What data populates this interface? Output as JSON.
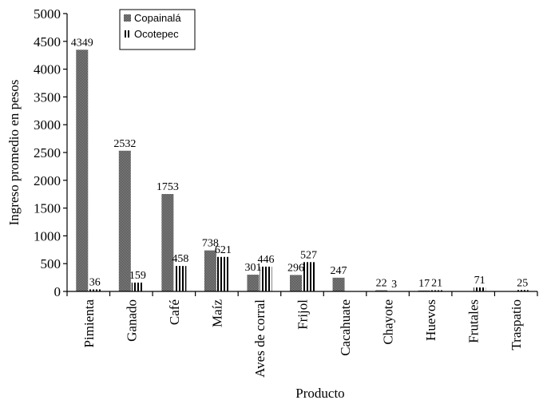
{
  "chart_data": {
    "type": "bar",
    "title": "",
    "xlabel": "Producto",
    "ylabel": "Ingreso promedio en pesos",
    "ylim": [
      0,
      5000
    ],
    "yticks": [
      0,
      500,
      1000,
      1500,
      2000,
      2500,
      3000,
      3500,
      4000,
      4500,
      5000
    ],
    "grid": false,
    "legend_position": "top-left",
    "categories": [
      "Pimienta",
      "Ganado",
      "Café",
      "Maíz",
      "Aves de corral",
      "Frijol",
      "Cacahuate",
      "Chayote",
      "Huevos",
      "Frutales",
      "Traspatio"
    ],
    "series": [
      {
        "name": "Copainalá",
        "pattern": "crosshatch",
        "color": "#6f6f6f",
        "values": [
          4349,
          2532,
          1753,
          738,
          301,
          296,
          247,
          22,
          17,
          null,
          null
        ],
        "labels": [
          "4349",
          "2532",
          "1753",
          "738",
          "301",
          "296",
          "247",
          "22",
          "17",
          "",
          ""
        ]
      },
      {
        "name": "Ocotepec",
        "pattern": "vertical-stripes",
        "color": "#000000",
        "values": [
          36,
          159,
          458,
          621,
          446,
          527,
          null,
          3,
          21,
          71,
          25
        ],
        "labels": [
          "36",
          "159",
          "458",
          "621",
          "446",
          "527",
          "",
          "3",
          "21",
          "71",
          "25"
        ]
      }
    ]
  }
}
